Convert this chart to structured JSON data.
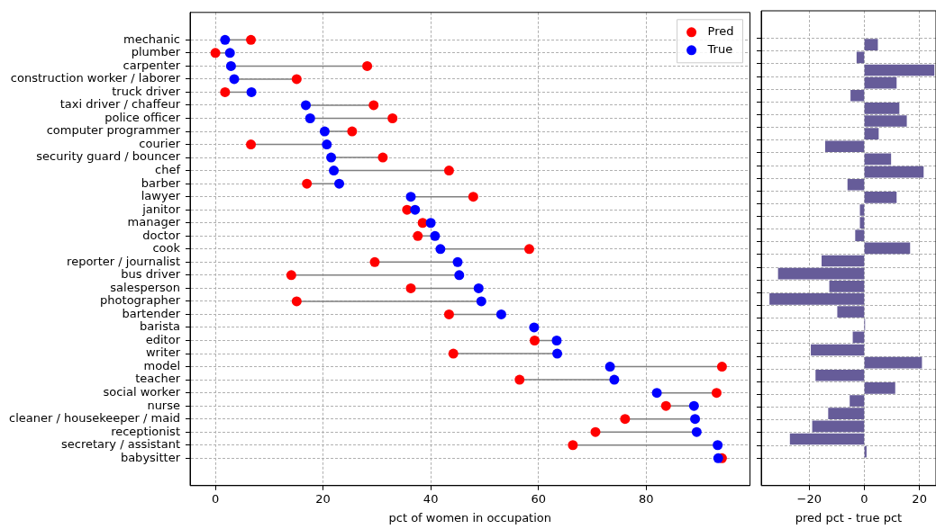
{
  "chart_data": [
    {
      "type": "scatter",
      "orientation": "horizontal",
      "xlabel": "pct of women in occupation",
      "categories": [
        "mechanic",
        "plumber",
        "carpenter",
        "construction worker / laborer",
        "truck driver",
        "taxi driver / chaffeur",
        "police officer",
        "computer programmer",
        "courier",
        "security guard / bouncer",
        "chef",
        "barber",
        "lawyer",
        "janitor",
        "manager",
        "doctor",
        "cook",
        "reporter / journalist",
        "bus driver",
        "salesperson",
        "photographer",
        "bartender",
        "barista",
        "editor",
        "writer",
        "model",
        "teacher",
        "social worker",
        "nurse",
        "cleaner / housekeeper / maid",
        "receptionist",
        "secretary / assistant",
        "babysitter"
      ],
      "series": [
        {
          "name": "Pred",
          "color": "#ff0000",
          "values": [
            6.6,
            0,
            28.2,
            15.1,
            1.8,
            29.4,
            32.9,
            25.4,
            6.6,
            31.1,
            43.4,
            17.0,
            47.9,
            35.6,
            38.5,
            37.6,
            58.3,
            29.6,
            14.1,
            36.3,
            15.1,
            43.4,
            null,
            59.3,
            44.2,
            94.1,
            56.5,
            93.1,
            83.7,
            76.1,
            70.6,
            66.4,
            94.1
          ]
        },
        {
          "name": "True",
          "color": "#0000ff",
          "values": [
            1.8,
            2.7,
            2.9,
            3.5,
            6.7,
            16.8,
            17.6,
            20.3,
            20.7,
            21.5,
            22.0,
            23.0,
            36.3,
            37.1,
            40.0,
            40.8,
            41.8,
            45.0,
            45.3,
            48.9,
            49.4,
            53.1,
            59.2,
            63.4,
            63.5,
            73.3,
            74.1,
            82.0,
            88.9,
            89.1,
            89.4,
            93.3,
            93.4
          ]
        }
      ],
      "xlim": [
        -4.7,
        99.3
      ],
      "xticks": [
        0,
        20,
        40,
        60,
        80
      ],
      "marker": "circle",
      "grid": true,
      "legend": "top right"
    },
    {
      "type": "bar",
      "orientation": "horizontal",
      "xlabel": "pred pct - true pct",
      "categories": [
        null,
        null,
        null,
        null,
        null,
        null,
        null,
        null,
        null,
        null,
        null,
        null,
        null,
        null,
        null,
        null,
        null,
        null,
        null,
        null,
        null,
        null,
        null,
        null,
        null,
        null,
        null,
        null,
        null,
        null,
        null,
        null,
        null
      ],
      "values": [
        4.8,
        -2.7,
        25.3,
        11.6,
        -4.9,
        12.6,
        15.3,
        5.1,
        -14.1,
        9.6,
        21.4,
        -6.0,
        11.6,
        -1.5,
        -1.5,
        -3.2,
        16.5,
        -15.4,
        -31.2,
        -12.6,
        -34.3,
        -9.7,
        0.1,
        -4.1,
        -19.3,
        20.8,
        -17.6,
        11.1,
        -5.2,
        -13.0,
        -18.8,
        -26.9,
        0.7
      ],
      "color": "#665c99",
      "xlim": [
        -37.4,
        26
      ],
      "xticks": [
        {
          "value": -20,
          "label": "−20"
        },
        0,
        20
      ],
      "grid": true,
      "tick_labels": "x"
    }
  ]
}
